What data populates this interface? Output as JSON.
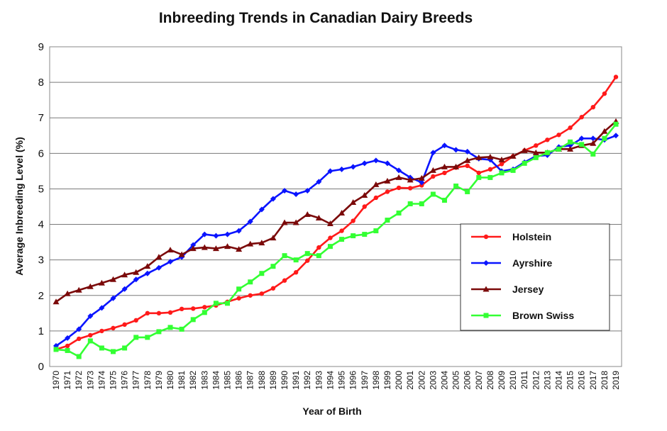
{
  "chart_data": {
    "type": "line",
    "title": "Inbreeding Trends in Canadian Dairy Breeds",
    "xlabel": "Year of Birth",
    "ylabel": "Average Inbreeding Level (%)",
    "ylim": [
      0,
      9
    ],
    "yticks": [
      "0",
      "1",
      "2",
      "3",
      "4",
      "5",
      "6",
      "7",
      "8",
      "9"
    ],
    "grid": "horizontal",
    "legend_position": "right",
    "categories": [
      "1970",
      "1971",
      "1972",
      "1973",
      "1974",
      "1975",
      "1976",
      "1977",
      "1978",
      "1979",
      "1980",
      "1981",
      "1982",
      "1983",
      "1984",
      "1985",
      "1986",
      "1987",
      "1988",
      "1989",
      "1990",
      "1991",
      "1992",
      "1993",
      "1994",
      "1995",
      "1996",
      "1997",
      "1998",
      "1999",
      "2000",
      "2001",
      "2002",
      "2003",
      "2004",
      "2005",
      "2006",
      "2007",
      "2008",
      "2009",
      "2010",
      "2011",
      "2012",
      "2013",
      "2014",
      "2015",
      "2016",
      "2017",
      "2018",
      "2019"
    ],
    "series": [
      {
        "name": "Holstein",
        "color": "#ff1a1a",
        "marker": "circle",
        "values": [
          0.48,
          0.58,
          0.78,
          0.88,
          1.0,
          1.08,
          1.18,
          1.3,
          1.5,
          1.5,
          1.52,
          1.62,
          1.63,
          1.67,
          1.72,
          1.82,
          1.92,
          2.0,
          2.05,
          2.2,
          2.42,
          2.65,
          2.98,
          3.35,
          3.62,
          3.82,
          4.1,
          4.5,
          4.75,
          4.92,
          5.03,
          5.02,
          5.1,
          5.35,
          5.45,
          5.6,
          5.65,
          5.45,
          5.55,
          5.7,
          5.92,
          6.08,
          6.22,
          6.38,
          6.52,
          6.72,
          7.02,
          7.3,
          7.68,
          8.15
        ]
      },
      {
        "name": "Ayrshire",
        "color": "#0a14ff",
        "marker": "diamond",
        "values": [
          0.58,
          0.8,
          1.05,
          1.42,
          1.65,
          1.92,
          2.18,
          2.45,
          2.62,
          2.78,
          2.95,
          3.08,
          3.42,
          3.72,
          3.68,
          3.72,
          3.82,
          4.08,
          4.42,
          4.72,
          4.95,
          4.85,
          4.95,
          5.2,
          5.5,
          5.55,
          5.62,
          5.72,
          5.8,
          5.72,
          5.52,
          5.32,
          5.18,
          6.02,
          6.22,
          6.1,
          6.05,
          5.85,
          5.82,
          5.5,
          5.55,
          5.75,
          5.92,
          5.95,
          6.18,
          6.22,
          6.42,
          6.42,
          6.38,
          6.5
        ]
      },
      {
        "name": "Jersey",
        "color": "#7b0a0a",
        "marker": "triangle",
        "values": [
          1.82,
          2.05,
          2.15,
          2.25,
          2.35,
          2.45,
          2.58,
          2.65,
          2.82,
          3.08,
          3.28,
          3.15,
          3.32,
          3.35,
          3.32,
          3.38,
          3.3,
          3.45,
          3.48,
          3.62,
          4.05,
          4.05,
          4.28,
          4.18,
          4.02,
          4.32,
          4.62,
          4.82,
          5.12,
          5.22,
          5.32,
          5.25,
          5.3,
          5.52,
          5.62,
          5.62,
          5.8,
          5.88,
          5.9,
          5.82,
          5.92,
          6.08,
          6.02,
          6.02,
          6.12,
          6.12,
          6.22,
          6.28,
          6.62,
          6.9
        ]
      },
      {
        "name": "Brown Swiss",
        "color": "#33ff33",
        "marker": "square",
        "values": [
          0.48,
          0.45,
          0.28,
          0.72,
          0.52,
          0.42,
          0.52,
          0.82,
          0.82,
          0.98,
          1.1,
          1.05,
          1.32,
          1.52,
          1.78,
          1.78,
          2.18,
          2.38,
          2.62,
          2.82,
          3.12,
          3.0,
          3.18,
          3.12,
          3.38,
          3.58,
          3.68,
          3.72,
          3.82,
          4.12,
          4.32,
          4.58,
          4.58,
          4.85,
          4.68,
          5.08,
          4.92,
          5.32,
          5.32,
          5.45,
          5.52,
          5.72,
          5.88,
          6.02,
          6.12,
          6.32,
          6.25,
          5.98,
          6.42,
          6.82
        ]
      }
    ]
  }
}
